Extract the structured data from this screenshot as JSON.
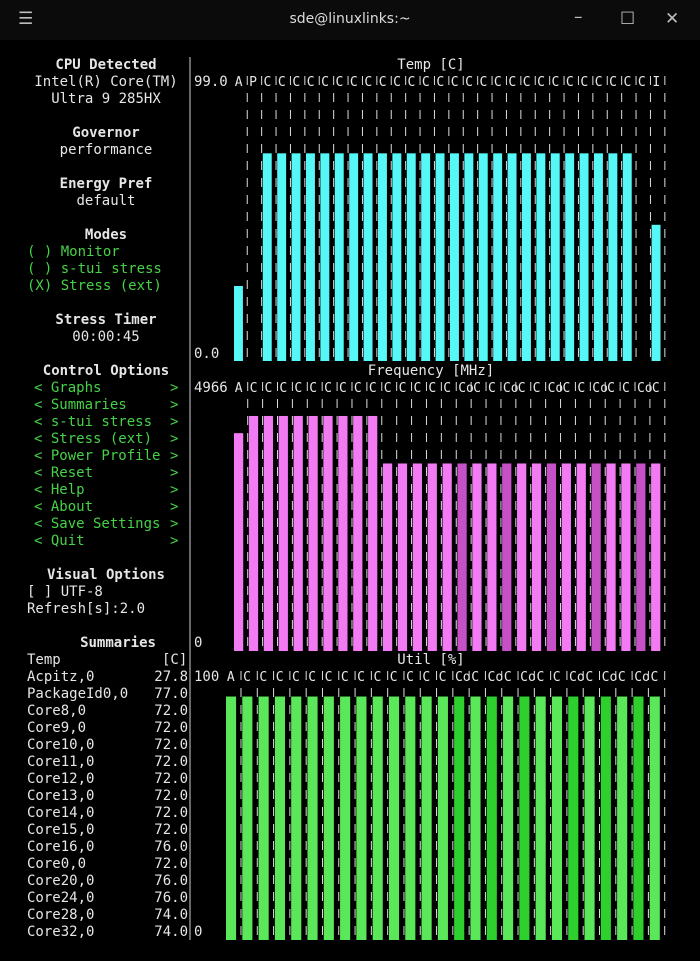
{
  "window": {
    "title": "sde@linuxlinks:~"
  },
  "sidebar": {
    "cpu_heading": "CPU Detected",
    "cpu_line1": "Intel(R) Core(TM)",
    "cpu_line2": "Ultra 9 285HX",
    "governor_heading": "Governor",
    "governor_value": "performance",
    "energy_heading": "Energy Pref",
    "energy_value": "default",
    "modes_heading": "Modes",
    "modes": [
      "( ) Monitor",
      "( ) s-tui stress",
      "(X) Stress (ext)"
    ],
    "timer_heading": "Stress Timer",
    "timer_value": "00:00:45",
    "control_heading": "Control Options",
    "control_items": [
      "Graphs",
      "Summaries",
      "s-tui stress",
      "Stress (ext)",
      "Power Profile",
      "Reset",
      "Help",
      "About",
      "Save Settings",
      "Quit"
    ],
    "arrow_left": "<",
    "arrow_right": ">",
    "visual_heading": "Visual Options",
    "utf8_option": "[ ] UTF-8",
    "refresh_label": "Refresh[s]:2.0",
    "summaries_heading": "Summaries",
    "summary_header": {
      "name": "Temp",
      "unit": "[C]"
    },
    "summary_rows": [
      {
        "name": "Acpitz,0",
        "value": "27.8"
      },
      {
        "name": "PackageId0,0",
        "value": "77.0"
      },
      {
        "name": "Core8,0",
        "value": "72.0"
      },
      {
        "name": "Core9,0",
        "value": "72.0"
      },
      {
        "name": "Core10,0",
        "value": "72.0"
      },
      {
        "name": "Core11,0",
        "value": "72.0"
      },
      {
        "name": "Core12,0",
        "value": "72.0"
      },
      {
        "name": "Core13,0",
        "value": "72.0"
      },
      {
        "name": "Core14,0",
        "value": "72.0"
      },
      {
        "name": "Core15,0",
        "value": "72.0"
      },
      {
        "name": "Core16,0",
        "value": "76.0"
      },
      {
        "name": "Core0,0",
        "value": "72.0"
      },
      {
        "name": "Core20,0",
        "value": "76.0"
      },
      {
        "name": "Core24,0",
        "value": "76.0"
      },
      {
        "name": "Core28,0",
        "value": "74.0"
      },
      {
        "name": "Core32,0",
        "value": "74.0"
      }
    ]
  },
  "graphs": {
    "temp": {
      "title": "Temp [C]",
      "max_label": "99.0",
      "min_label": "0.0",
      "max": 99.0,
      "color": "#55f7f7",
      "color_alt": "#55f7f7",
      "labels": [
        "A",
        "P",
        "C",
        "C",
        "C",
        "C",
        "C",
        "C",
        "C",
        "C",
        "C",
        "C",
        "C",
        "C",
        "C",
        "C",
        "C",
        "C",
        "C",
        "C",
        "C",
        "C",
        "C",
        "C",
        "C",
        "C",
        "C",
        "C",
        "C",
        "I"
      ],
      "values": [
        27.8,
        0,
        77,
        77,
        77,
        77,
        77,
        77,
        77,
        77,
        77,
        77,
        77,
        77,
        77,
        77,
        77,
        77,
        77,
        77,
        77,
        77,
        77,
        77,
        77,
        77,
        77,
        77,
        0,
        50.5
      ],
      "alt": []
    },
    "freq": {
      "title": "Frequency [MHz]",
      "max_label": "4966",
      "min_label": "0",
      "max": 4966,
      "color": "#f27af2",
      "color_alt": "#c650c6",
      "labels": [
        "A",
        "C",
        "C",
        "C",
        "C",
        "C",
        "C",
        "C",
        "C",
        "C",
        "C",
        "C",
        "C",
        "C",
        "C",
        "Co",
        "C",
        "C",
        "Co",
        "C",
        "C",
        "Co",
        "C",
        "C",
        "Co",
        "C",
        "C",
        "Co",
        "C"
      ],
      "values": [
        4310,
        4650,
        4650,
        4650,
        4650,
        4650,
        4650,
        4650,
        4650,
        4650,
        3710,
        3710,
        3710,
        3710,
        3710,
        3710,
        3710,
        3710,
        3710,
        3710,
        3710,
        3710,
        3710,
        3710,
        3710,
        3710,
        3710,
        3710,
        3710
      ],
      "alt": [
        15,
        18,
        21,
        24,
        27
      ]
    },
    "util": {
      "title": "Util [%]",
      "max_label": "100",
      "min_label": "0",
      "max": 100,
      "color": "#5ae85a",
      "color_alt": "#2ed02e",
      "labels": [
        "A",
        "C",
        "C",
        "C",
        "C",
        "C",
        "C",
        "C",
        "C",
        "C",
        "C",
        "C",
        "C",
        "C",
        "Co",
        "C",
        "Co",
        "C",
        "Co",
        "C",
        "C",
        "Co",
        "C",
        "Co",
        "C",
        "Co",
        "C"
      ],
      "values": [
        97,
        97,
        97,
        97,
        97,
        97,
        97,
        97,
        97,
        97,
        97,
        97,
        97,
        97,
        97,
        97,
        97,
        97,
        97,
        97,
        97,
        97,
        97,
        97,
        97,
        97,
        97
      ],
      "alt": [
        14,
        16,
        18,
        21,
        23,
        25
      ]
    }
  }
}
